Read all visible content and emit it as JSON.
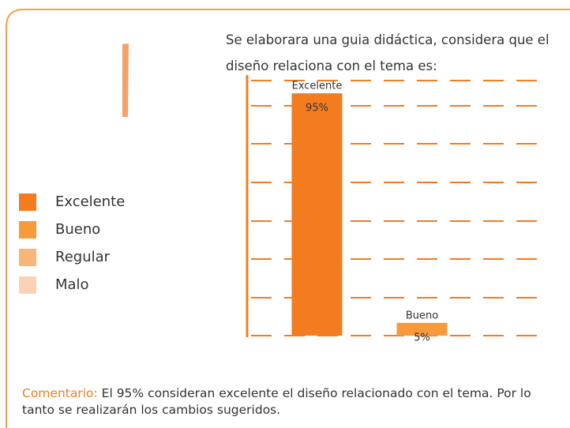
{
  "chart_data": {
    "type": "bar",
    "title": "Se elaborara una guia didáctica, considera que el diseño relaciona con el tema es:",
    "categories": [
      "Excelente",
      "Bueno"
    ],
    "values": [
      95,
      5
    ],
    "value_labels": [
      "95%",
      "5%"
    ],
    "colors": [
      "#f47c20",
      "#f79a3a"
    ],
    "ylim": [
      0,
      100
    ],
    "grid": true,
    "legend": {
      "position": "left",
      "items": [
        {
          "name": "Excelente",
          "color": "#f47c20"
        },
        {
          "name": "Bueno",
          "color": "#f79a3a"
        },
        {
          "name": "Regular",
          "color": "#f9b577"
        },
        {
          "name": "Malo",
          "color": "#fbd3b4"
        }
      ]
    }
  },
  "comment": {
    "label": "Comentario:",
    "text": "El 95% consideran excelente el diseño relacionado con el tema. Por lo tanto se realizarán los cambios sugeridos."
  }
}
